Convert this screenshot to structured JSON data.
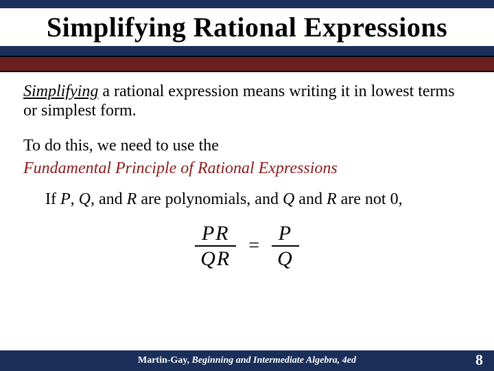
{
  "header": {
    "title": "Simplifying Rational Expressions"
  },
  "body": {
    "para1_lead": "Simplifying",
    "para1_rest": " a rational expression means writing it in lowest terms or simplest form.",
    "para2": "To do this, we need to use the",
    "principle": "Fundamental Principle of Rational Expressions",
    "poly_prefix": "If ",
    "poly_P": "P",
    "poly_sep1": ", ",
    "poly_Q": "Q",
    "poly_sep2": ", and ",
    "poly_R": "R",
    "poly_mid": " are polynomials, and ",
    "poly_Q2": "Q",
    "poly_and": " and ",
    "poly_R2": "R",
    "poly_tail": " are not 0,"
  },
  "equation": {
    "left_num": "PR",
    "left_den": "QR",
    "equals": "=",
    "right_num": "P",
    "right_den": "Q"
  },
  "footer": {
    "author": "Martin-Gay, ",
    "book": "Beginning and Intermediate Algebra, 4ed",
    "page": "8"
  },
  "colors": {
    "navy": "#1a2f5a",
    "maroon_band": "#6b1f1f",
    "principle_text": "#8b1a1a",
    "background": "#ffffff"
  }
}
